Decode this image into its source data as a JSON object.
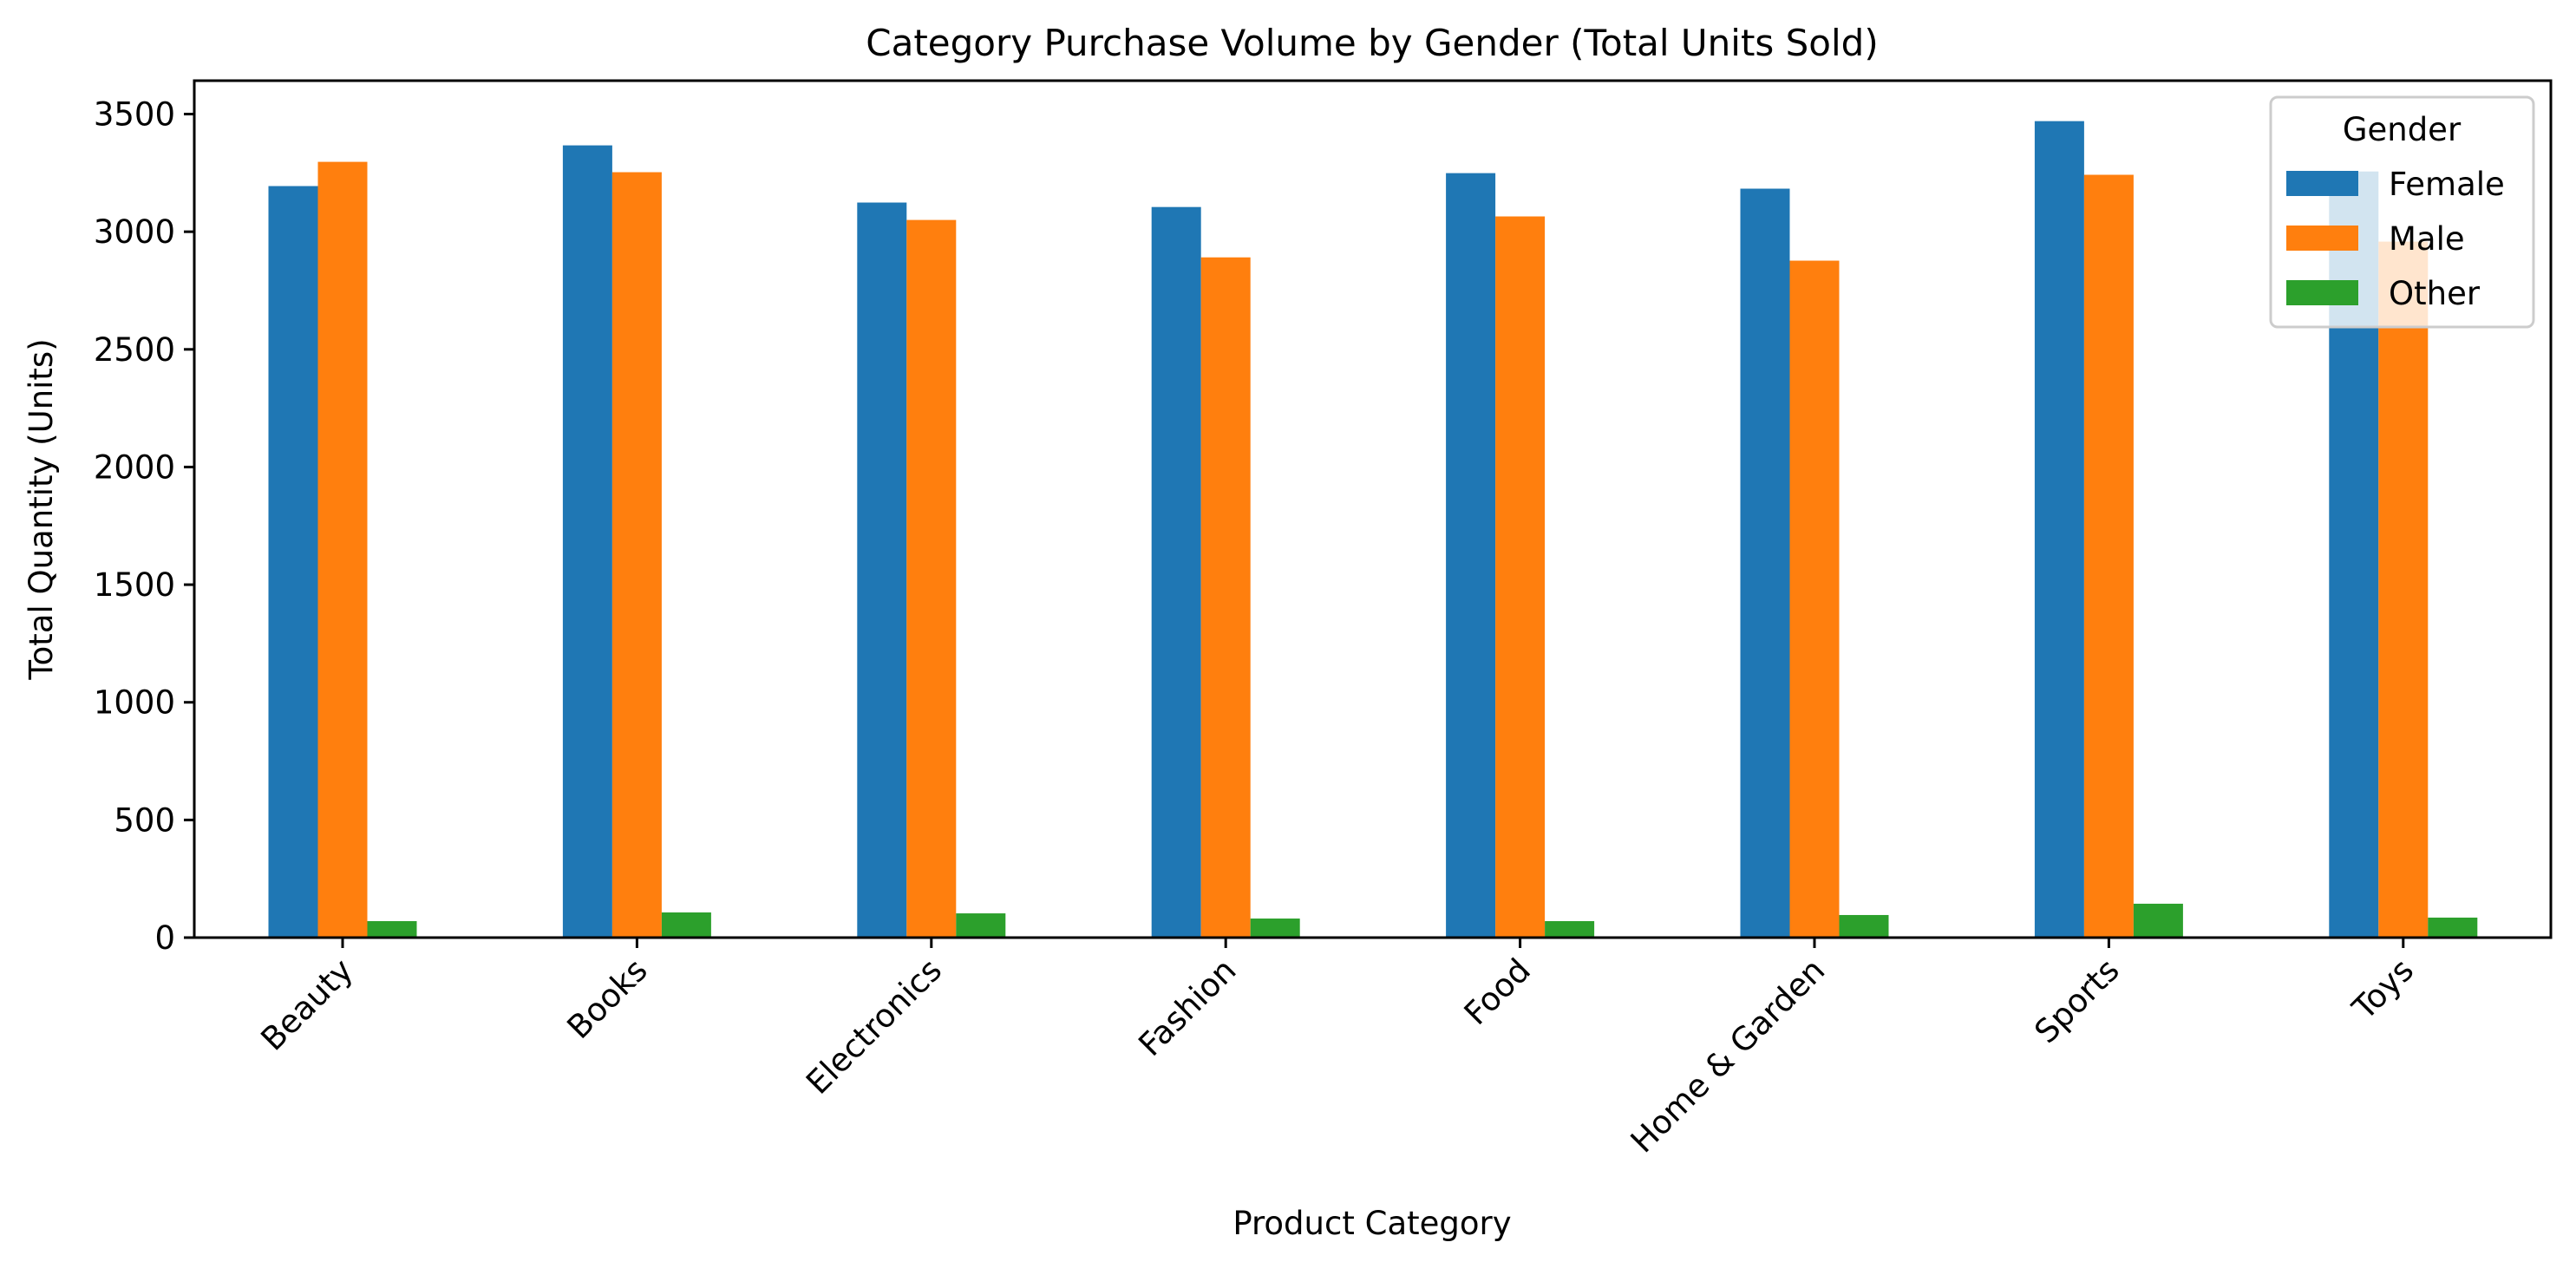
{
  "chart_data": {
    "type": "bar",
    "title": "Category Purchase Volume by Gender (Total Units Sold)",
    "xlabel": "Product Category",
    "ylabel": "Total Quantity (Units)",
    "categories": [
      "Beauty",
      "Books",
      "Electronics",
      "Fashion",
      "Food",
      "Home & Garden",
      "Sports",
      "Toys"
    ],
    "series": [
      {
        "name": "Female",
        "color": "#1f77b4",
        "values": [
          3194,
          3367,
          3124,
          3105,
          3249,
          3183,
          3470,
          3256
        ]
      },
      {
        "name": "Male",
        "color": "#ff7f0e",
        "values": [
          3297,
          3253,
          3050,
          2891,
          3065,
          2877,
          3242,
          2958
        ]
      },
      {
        "name": "Other",
        "color": "#2ca02c",
        "values": [
          70,
          107,
          103,
          81,
          70,
          96,
          144,
          85
        ]
      }
    ],
    "yticks": [
      0,
      500,
      1000,
      1500,
      2000,
      2500,
      3000,
      3500
    ],
    "ylim": [
      0,
      3642
    ],
    "grid": false,
    "xtick_rotation": 45,
    "legend": {
      "title": "Gender",
      "position": "upper right",
      "entries": [
        "Female",
        "Male",
        "Other"
      ]
    }
  }
}
